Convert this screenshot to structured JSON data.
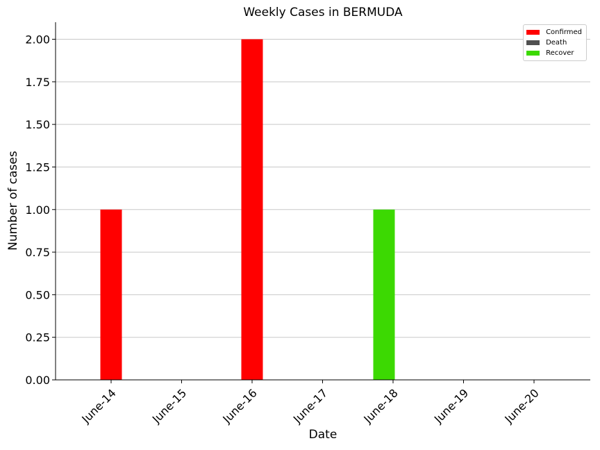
{
  "chart_data": {
    "type": "bar",
    "title": "Weekly Cases in BERMUDA",
    "xlabel": "Date",
    "ylabel": "Number of cases",
    "categories": [
      "June-14",
      "June-15",
      "June-16",
      "June-17",
      "June-18",
      "June-19",
      "June-20"
    ],
    "series": [
      {
        "name": "Confirmed",
        "color": "#ff0000",
        "values": [
          1,
          0,
          2,
          0,
          0,
          0,
          0
        ]
      },
      {
        "name": "Death",
        "color": "#505050",
        "values": [
          0,
          0,
          0,
          0,
          0,
          0,
          0
        ]
      },
      {
        "name": "Recover",
        "color": "#3cd902",
        "values": [
          0,
          0,
          0,
          0,
          1,
          0,
          0
        ]
      }
    ],
    "ylim": [
      0,
      2.1
    ],
    "yticks": [
      "0.00",
      "0.25",
      "0.50",
      "0.75",
      "1.00",
      "1.25",
      "1.50",
      "1.75",
      "2.00"
    ],
    "grid": "horizontal",
    "legend_position": "top-right"
  }
}
